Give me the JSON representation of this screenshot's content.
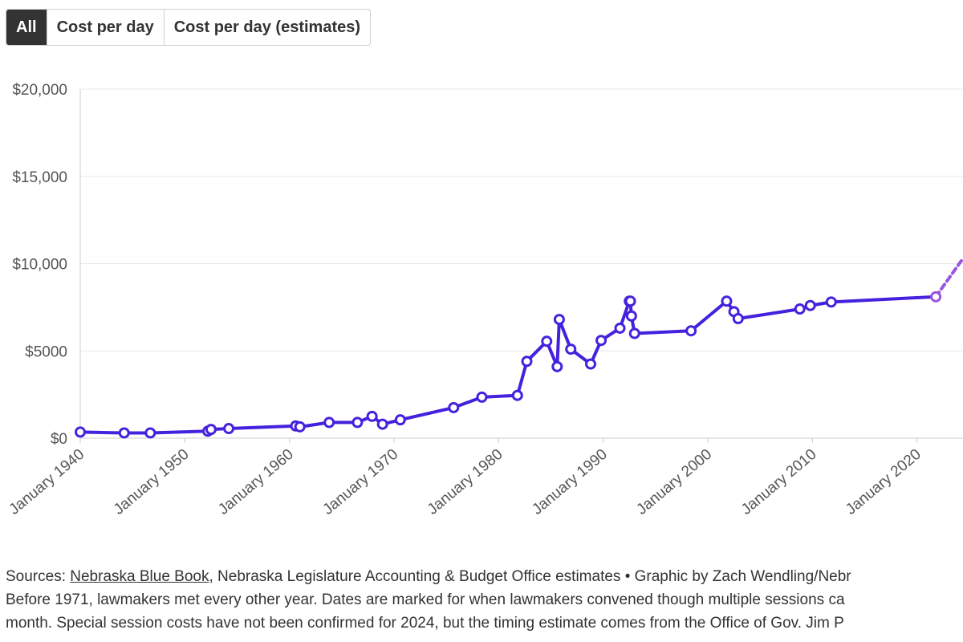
{
  "tabs": [
    {
      "label": "All",
      "active": true
    },
    {
      "label": "Cost per day",
      "active": false
    },
    {
      "label": "Cost per day (estimates)",
      "active": false
    }
  ],
  "colors": {
    "line": "#4422dd",
    "estimate": "#9955dd",
    "grid": "#e8e8e8",
    "axis": "#555555"
  },
  "chart_data": {
    "type": "line",
    "title": "",
    "xlabel": "",
    "ylabel": "",
    "xlim": [
      1940,
      2024.4
    ],
    "ylim": [
      0,
      20000
    ],
    "y_ticks": [
      {
        "value": 0,
        "label": "$0"
      },
      {
        "value": 5000,
        "label": "$5000"
      },
      {
        "value": 10000,
        "label": "$10,000"
      },
      {
        "value": 15000,
        "label": "$15,000"
      },
      {
        "value": 20000,
        "label": "$20,000"
      }
    ],
    "x_ticks": [
      {
        "value": 1940,
        "label": "January 1940"
      },
      {
        "value": 1950,
        "label": "January 1950"
      },
      {
        "value": 1960,
        "label": "January 1960"
      },
      {
        "value": 1970,
        "label": "January 1970"
      },
      {
        "value": 1980,
        "label": "January 1980"
      },
      {
        "value": 1990,
        "label": "January 1990"
      },
      {
        "value": 2000,
        "label": "January 2000"
      },
      {
        "value": 2010,
        "label": "January 2010"
      },
      {
        "value": 2020,
        "label": "January 2020"
      }
    ],
    "series": [
      {
        "name": "Cost per day",
        "style": "solid",
        "x": [
          1940.0,
          1944.2,
          1946.7,
          1952.2,
          1952.5,
          1954.2,
          1960.6,
          1961.0,
          1963.8,
          1966.5,
          1967.9,
          1968.9,
          1970.6,
          1975.7,
          1978.4,
          1981.8,
          1982.7,
          1984.6,
          1985.6,
          1985.8,
          1986.9,
          1988.8,
          1989.8,
          1991.6,
          1992.5,
          1992.6,
          1992.7,
          1993.0,
          1998.4,
          2001.8,
          2002.5,
          2002.9,
          2008.8,
          2009.8,
          2011.8,
          2021.8
        ],
        "y": [
          350,
          300,
          300,
          400,
          500,
          550,
          700,
          650,
          900,
          900,
          1250,
          800,
          1050,
          1750,
          2350,
          2450,
          4400,
          5550,
          4100,
          6800,
          5100,
          4250,
          5600,
          6300,
          7850,
          7850,
          7000,
          6000,
          6150,
          7850,
          7250,
          6850,
          7400,
          7600,
          7800,
          8100
        ]
      },
      {
        "name": "Cost per day (estimates)",
        "style": "dashed",
        "x": [
          2021.8,
          2024.4
        ],
        "y": [
          8100,
          10300
        ]
      }
    ]
  },
  "footer": {
    "sources_prefix": "Sources: ",
    "sources_link": "Nebraska Blue Book",
    "sources_rest": ", Nebraska Legislature Accounting & Budget Office estimates • Graphic by Zach Wendling/Nebr",
    "note_line_1": "Before 1971, lawmakers met every other year. Dates are marked for when lawmakers convened though multiple sessions ca",
    "note_line_2": "month. Special session costs have not been confirmed for 2024, but the timing estimate comes from the Office of Gov. Jim P"
  }
}
